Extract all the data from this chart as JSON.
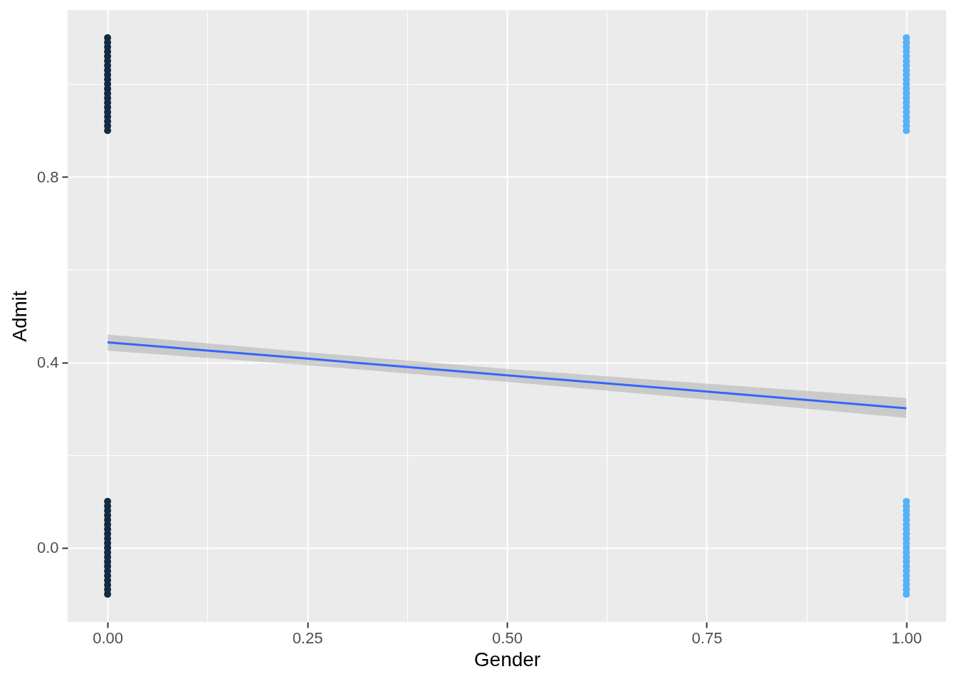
{
  "chart_data": {
    "type": "scatter",
    "xlabel": "Gender",
    "ylabel": "Admit",
    "xlim": [
      -0.05,
      1.05
    ],
    "ylim": [
      -0.16,
      1.16
    ],
    "xticks": [
      {
        "value": 0,
        "label": "0.00"
      },
      {
        "value": 0.125,
        "label": null
      },
      {
        "value": 0.25,
        "label": "0.25"
      },
      {
        "value": 0.375,
        "label": null
      },
      {
        "value": 0.5,
        "label": "0.50"
      },
      {
        "value": 0.625,
        "label": null
      },
      {
        "value": 0.75,
        "label": "0.75"
      },
      {
        "value": 0.875,
        "label": null
      },
      {
        "value": 1,
        "label": "1.00"
      }
    ],
    "yticks": [
      {
        "value": 0,
        "label": "0.0"
      },
      {
        "value": 0.2,
        "label": null
      },
      {
        "value": 0.4,
        "label": "0.4"
      },
      {
        "value": 0.6,
        "label": null
      },
      {
        "value": 0.8,
        "label": "0.8"
      },
      {
        "value": 1.0,
        "label": null
      }
    ],
    "grid": true,
    "series": [
      {
        "marker": "circle",
        "color": "#132b43",
        "x": [
          0,
          0,
          0,
          0,
          0,
          0,
          0,
          0,
          0,
          0,
          0,
          0,
          0,
          0,
          0,
          0,
          0,
          0,
          0,
          0,
          0,
          0,
          0,
          0,
          0,
          0,
          0,
          0,
          0,
          0,
          0,
          0,
          0,
          0,
          0,
          0,
          0,
          0,
          0,
          0,
          0,
          0
        ],
        "values": [
          -0.1,
          -0.09,
          -0.08,
          -0.07,
          -0.06,
          -0.05,
          -0.04,
          -0.03,
          -0.02,
          -0.01,
          0,
          0.01,
          0.02,
          0.03,
          0.04,
          0.05,
          0.06,
          0.07,
          0.08,
          0.09,
          0.1,
          0.9,
          0.91,
          0.92,
          0.93,
          0.94,
          0.95,
          0.96,
          0.97,
          0.98,
          0.99,
          1,
          1.01,
          1.02,
          1.03,
          1.04,
          1.05,
          1.06,
          1.07,
          1.08,
          1.09,
          1.1
        ]
      },
      {
        "marker": "circle",
        "color": "#56b1f7",
        "x": [
          1,
          1,
          1,
          1,
          1,
          1,
          1,
          1,
          1,
          1,
          1,
          1,
          1,
          1,
          1,
          1,
          1,
          1,
          1,
          1,
          1,
          1,
          1,
          1,
          1,
          1,
          1,
          1,
          1,
          1,
          1,
          1,
          1,
          1,
          1,
          1,
          1,
          1,
          1,
          1,
          1,
          1
        ],
        "values": [
          -0.1,
          -0.09,
          -0.08,
          -0.07,
          -0.06,
          -0.05,
          -0.04,
          -0.03,
          -0.02,
          -0.01,
          0,
          0.01,
          0.02,
          0.03,
          0.04,
          0.05,
          0.06,
          0.07,
          0.08,
          0.09,
          0.1,
          0.9,
          0.91,
          0.92,
          0.93,
          0.94,
          0.95,
          0.96,
          0.97,
          0.98,
          0.99,
          1,
          1.01,
          1.02,
          1.03,
          1.04,
          1.05,
          1.06,
          1.07,
          1.08,
          1.09,
          1.1
        ]
      },
      {
        "type": "line",
        "color": "#3366ff",
        "x": [
          0,
          0.25,
          0.5,
          0.75,
          1
        ],
        "values": [
          0.443,
          0.408,
          0.372,
          0.337,
          0.301
        ],
        "lower": [
          0.425,
          0.394,
          0.358,
          0.32,
          0.28
        ],
        "upper": [
          0.46,
          0.422,
          0.386,
          0.354,
          0.323
        ]
      }
    ]
  }
}
